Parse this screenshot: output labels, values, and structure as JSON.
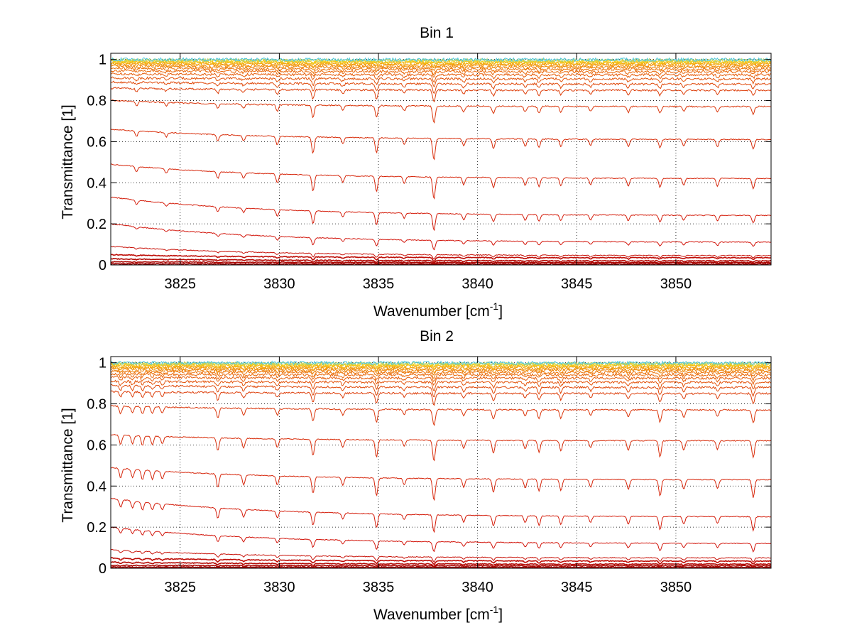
{
  "chart_data": [
    {
      "type": "line",
      "title": "Bin 1",
      "xlabel": "Wavenumber [cm",
      "xlabel_sup": "-1",
      "xlabel_end": "]",
      "ylabel": "Transmittance [1]",
      "xlim": [
        3821.5,
        3854.8
      ],
      "ylim": [
        0,
        1.03
      ],
      "x_ticks": [
        3825,
        3830,
        3835,
        3840,
        3845,
        3850
      ],
      "y_ticks": [
        0,
        0.2,
        0.4,
        0.6,
        0.8,
        1
      ],
      "grid": true,
      "base_levels": [
        0.0,
        0.005,
        0.012,
        0.02,
        0.035,
        0.045,
        0.11,
        0.24,
        0.42,
        0.61,
        0.77,
        0.85,
        0.88,
        0.905,
        0.925,
        0.94,
        0.952,
        0.962,
        0.97,
        0.977,
        0.983,
        0.988,
        0.992,
        0.996,
        0.999
      ],
      "start_levels": [
        0.0,
        0.006,
        0.015,
        0.03,
        0.05,
        0.09,
        0.2,
        0.33,
        0.49,
        0.66,
        0.8,
        0.86,
        0.89,
        0.91,
        0.93,
        0.945,
        0.957,
        0.966,
        0.974,
        0.98,
        0.986,
        0.99,
        0.994,
        0.997,
        1.0
      ],
      "absorption_lines": [
        {
          "x": 3822.8,
          "depth": 0.25
        },
        {
          "x": 3824.3,
          "depth": 0.2
        },
        {
          "x": 3826.9,
          "depth": 0.3
        },
        {
          "x": 3828.2,
          "depth": 0.25
        },
        {
          "x": 3829.9,
          "depth": 0.4
        },
        {
          "x": 3831.7,
          "depth": 0.75
        },
        {
          "x": 3833.2,
          "depth": 0.3
        },
        {
          "x": 3834.9,
          "depth": 0.7
        },
        {
          "x": 3836.3,
          "depth": 0.3
        },
        {
          "x": 3837.8,
          "depth": 1.0
        },
        {
          "x": 3839.3,
          "depth": 0.35
        },
        {
          "x": 3840.8,
          "depth": 0.45
        },
        {
          "x": 3842.4,
          "depth": 0.35
        },
        {
          "x": 3843.1,
          "depth": 0.4
        },
        {
          "x": 3844.2,
          "depth": 0.35
        },
        {
          "x": 3845.7,
          "depth": 0.3
        },
        {
          "x": 3847.6,
          "depth": 0.35
        },
        {
          "x": 3849.2,
          "depth": 0.4
        },
        {
          "x": 3850.4,
          "depth": 0.3
        },
        {
          "x": 3852.1,
          "depth": 0.35
        },
        {
          "x": 3853.9,
          "depth": 0.45
        }
      ]
    },
    {
      "type": "line",
      "title": "Bin 2",
      "xlabel": "Wavenumber [cm",
      "xlabel_sup": "-1",
      "xlabel_end": "]",
      "ylabel": "Transmittance [1]",
      "xlim": [
        3821.5,
        3854.8
      ],
      "ylim": [
        0,
        1.03
      ],
      "x_ticks": [
        3825,
        3830,
        3835,
        3840,
        3845,
        3850
      ],
      "y_ticks": [
        0,
        0.2,
        0.4,
        0.6,
        0.8,
        1
      ],
      "grid": true,
      "base_levels": [
        0.0,
        0.005,
        0.012,
        0.02,
        0.035,
        0.05,
        0.12,
        0.25,
        0.43,
        0.62,
        0.77,
        0.85,
        0.88,
        0.905,
        0.925,
        0.94,
        0.952,
        0.962,
        0.97,
        0.977,
        0.983,
        0.988,
        0.992,
        0.996,
        0.999
      ],
      "start_levels": [
        0.0,
        0.006,
        0.015,
        0.03,
        0.05,
        0.09,
        0.2,
        0.34,
        0.49,
        0.65,
        0.79,
        0.86,
        0.89,
        0.91,
        0.93,
        0.945,
        0.957,
        0.966,
        0.974,
        0.98,
        0.986,
        0.99,
        0.994,
        0.997,
        1.0
      ],
      "absorption_lines": [
        {
          "x": 3822.0,
          "depth": 0.45
        },
        {
          "x": 3822.6,
          "depth": 0.4
        },
        {
          "x": 3823.1,
          "depth": 0.45
        },
        {
          "x": 3823.6,
          "depth": 0.4
        },
        {
          "x": 3824.1,
          "depth": 0.35
        },
        {
          "x": 3826.9,
          "depth": 0.6
        },
        {
          "x": 3828.2,
          "depth": 0.45
        },
        {
          "x": 3829.9,
          "depth": 0.4
        },
        {
          "x": 3831.7,
          "depth": 0.75
        },
        {
          "x": 3833.2,
          "depth": 0.35
        },
        {
          "x": 3834.9,
          "depth": 0.8
        },
        {
          "x": 3836.3,
          "depth": 0.3
        },
        {
          "x": 3837.8,
          "depth": 1.0
        },
        {
          "x": 3839.3,
          "depth": 0.4
        },
        {
          "x": 3840.8,
          "depth": 0.6
        },
        {
          "x": 3842.4,
          "depth": 0.4
        },
        {
          "x": 3843.1,
          "depth": 0.55
        },
        {
          "x": 3844.2,
          "depth": 0.5
        },
        {
          "x": 3845.7,
          "depth": 0.35
        },
        {
          "x": 3847.6,
          "depth": 0.45
        },
        {
          "x": 3849.2,
          "depth": 0.75
        },
        {
          "x": 3850.4,
          "depth": 0.45
        },
        {
          "x": 3852.1,
          "depth": 0.4
        },
        {
          "x": 3853.9,
          "depth": 0.8
        }
      ]
    }
  ]
}
